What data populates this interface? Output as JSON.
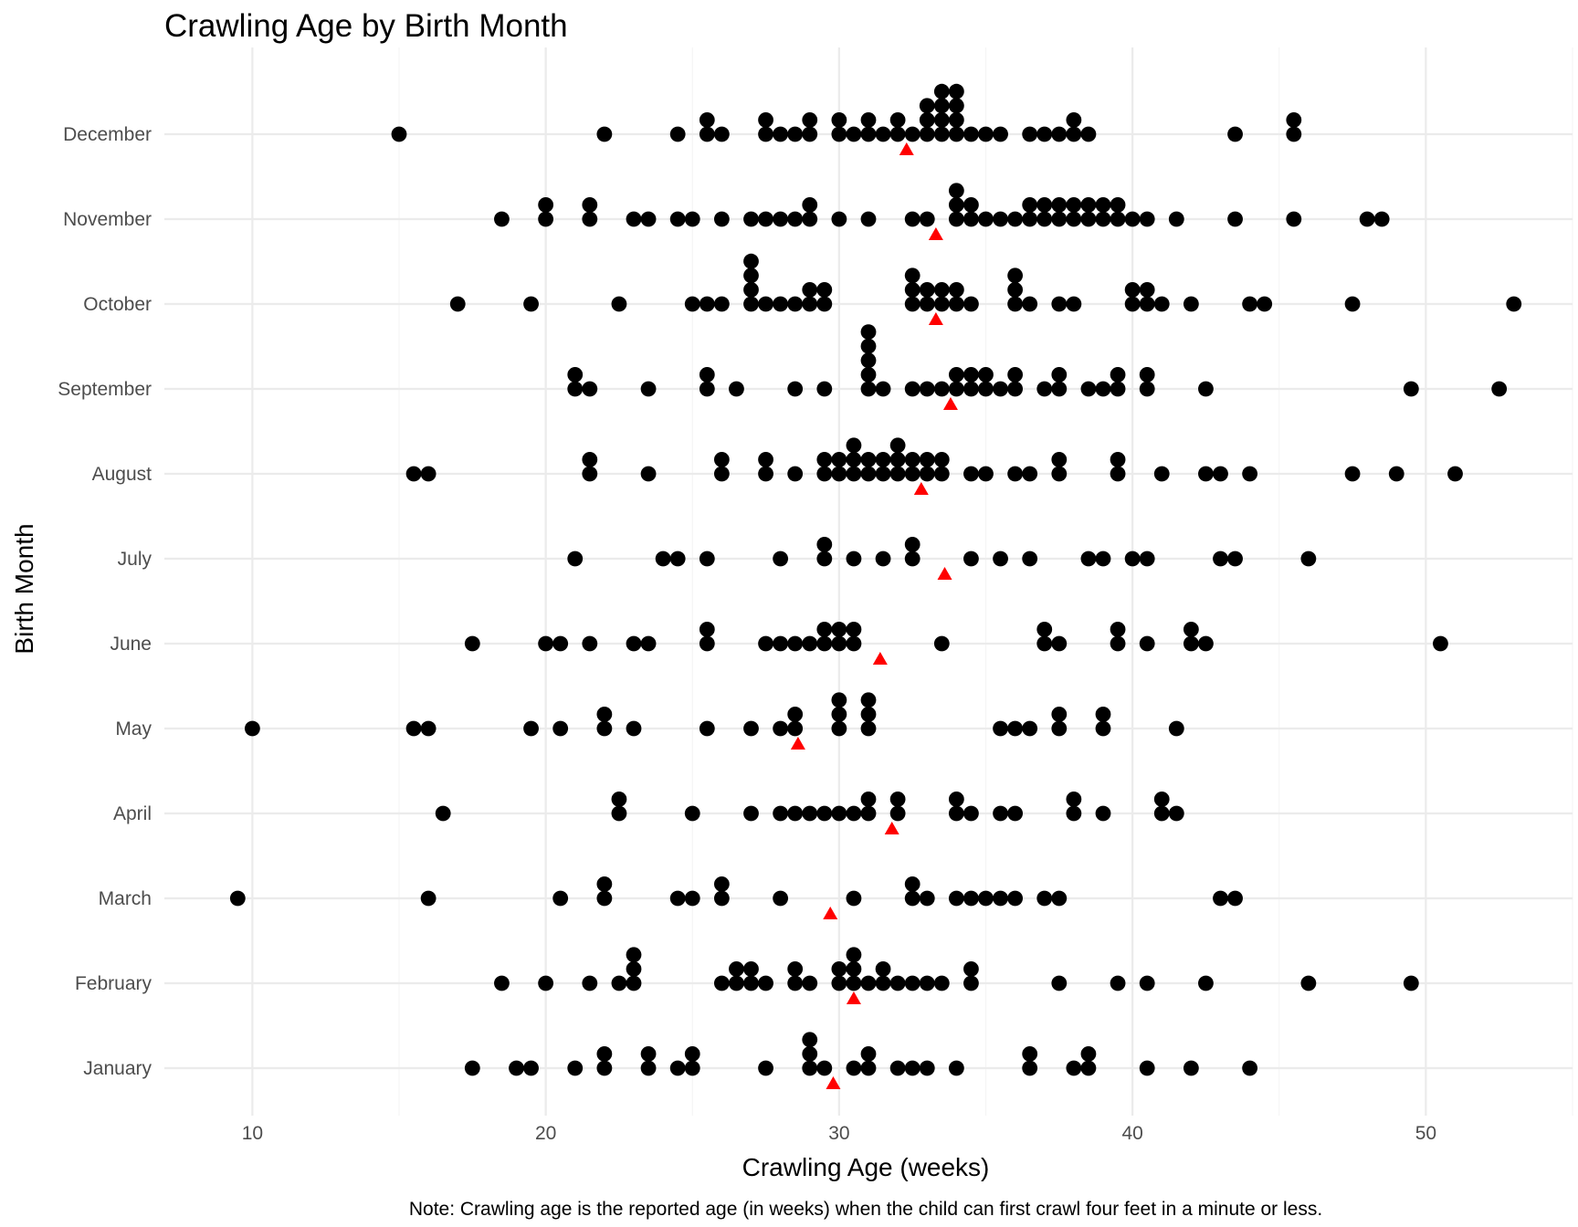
{
  "chart_data": {
    "type": "scatter",
    "title": "Crawling Age by Birth Month",
    "xlabel": "Crawling Age (weeks)",
    "ylabel": "Birth Month",
    "caption": "Note: Crawling age is the reported age (in weeks) when the child can first crawl four feet in a minute or less.",
    "xlim": [
      7,
      55
    ],
    "x_ticks": [
      10,
      20,
      30,
      40,
      50
    ],
    "grid": true,
    "categories": [
      "January",
      "February",
      "March",
      "April",
      "May",
      "June",
      "July",
      "August",
      "September",
      "October",
      "November",
      "December"
    ],
    "series": [
      {
        "marker": "dot",
        "color": "#000000",
        "values": {
          "January": [
            17.5,
            19,
            19.5,
            21,
            22,
            22,
            23.5,
            23.5,
            24.5,
            25,
            25,
            27.5,
            29,
            29,
            29,
            29.5,
            30.5,
            31,
            31,
            32,
            32.5,
            33,
            34,
            36.5,
            36.5,
            38,
            38.5,
            38.5,
            40.5,
            42,
            44
          ],
          "February": [
            18.5,
            20,
            21.5,
            22.5,
            23,
            23,
            23,
            26,
            26.5,
            26.5,
            27,
            27,
            27.5,
            28.5,
            28.5,
            29,
            30,
            30,
            30.5,
            30.5,
            30.5,
            31,
            31.5,
            31.5,
            32,
            32.5,
            33,
            33.5,
            34.5,
            34.5,
            37.5,
            39.5,
            40.5,
            42.5,
            46,
            49.5
          ],
          "March": [
            9.5,
            16,
            20.5,
            22,
            22,
            24.5,
            25,
            26,
            26,
            28,
            30.5,
            32.5,
            32.5,
            33,
            34,
            34.5,
            35,
            35.5,
            36,
            37,
            37.5,
            43,
            43.5
          ],
          "April": [
            16.5,
            22.5,
            22.5,
            25,
            27,
            28,
            28.5,
            29,
            29.5,
            30,
            30.5,
            31,
            31,
            32,
            32,
            34,
            34,
            34.5,
            35.5,
            36,
            38,
            38,
            39,
            41,
            41,
            41.5
          ],
          "May": [
            10,
            15.5,
            16,
            19.5,
            20.5,
            22,
            22,
            23,
            25.5,
            27,
            28,
            28.5,
            28.5,
            30,
            30,
            30,
            31,
            31,
            31,
            35.5,
            36,
            36.5,
            37.5,
            37.5,
            39,
            39,
            41.5
          ],
          "June": [
            17.5,
            20,
            20.5,
            21.5,
            23,
            23.5,
            25.5,
            25.5,
            27.5,
            28,
            28.5,
            29,
            29.5,
            29.5,
            30,
            30,
            30.5,
            30.5,
            33.5,
            37,
            37,
            37.5,
            39.5,
            39.5,
            40.5,
            42,
            42,
            42.5,
            50.5
          ],
          "July": [
            21,
            24,
            24.5,
            25.5,
            28,
            29.5,
            29.5,
            30.5,
            31.5,
            32.5,
            32.5,
            34.5,
            35.5,
            36.5,
            38.5,
            39,
            40,
            40.5,
            43,
            43.5,
            46
          ],
          "August": [
            15.5,
            16,
            21.5,
            21.5,
            23.5,
            26,
            26,
            27.5,
            27.5,
            28.5,
            29.5,
            29.5,
            30,
            30,
            30.5,
            30.5,
            30.5,
            31,
            31,
            31.5,
            31.5,
            32,
            32,
            32,
            32.5,
            32.5,
            33,
            33,
            33.5,
            33.5,
            34.5,
            35,
            36,
            36.5,
            37.5,
            37.5,
            39.5,
            39.5,
            41,
            42.5,
            43,
            44,
            47.5,
            49,
            51
          ],
          "September": [
            21,
            21,
            21.5,
            23.5,
            25.5,
            25.5,
            26.5,
            28.5,
            29.5,
            31,
            31,
            31,
            31,
            31,
            31.5,
            32.5,
            33,
            33.5,
            34,
            34,
            34.5,
            34.5,
            35,
            35,
            35.5,
            36,
            36,
            37,
            37.5,
            37.5,
            38.5,
            39,
            39.5,
            39.5,
            40.5,
            40.5,
            42.5,
            49.5,
            52.5
          ],
          "October": [
            17,
            19.5,
            22.5,
            25,
            25.5,
            26,
            27,
            27,
            27,
            27,
            27.5,
            28,
            28.5,
            29,
            29,
            29.5,
            29.5,
            32.5,
            32.5,
            32.5,
            33,
            33,
            33.5,
            33.5,
            34,
            34,
            34.5,
            36,
            36,
            36,
            36.5,
            37.5,
            38,
            40,
            40,
            40.5,
            40.5,
            41,
            42,
            44,
            44.5,
            47.5,
            53
          ],
          "November": [
            18.5,
            20,
            20,
            21.5,
            21.5,
            23,
            23.5,
            24.5,
            25,
            26,
            27,
            27.5,
            28,
            28.5,
            29,
            29,
            30,
            31,
            32.5,
            33,
            34,
            34,
            34,
            34.5,
            34.5,
            35,
            35.5,
            36,
            36.5,
            36.5,
            37,
            37,
            37.5,
            37.5,
            38,
            38,
            38.5,
            38.5,
            39,
            39,
            39.5,
            39.5,
            40,
            40.5,
            41.5,
            43.5,
            45.5,
            48,
            48.5
          ],
          "December": [
            15,
            22,
            24.5,
            25.5,
            25.5,
            26,
            27.5,
            27.5,
            28,
            28.5,
            29,
            29,
            30,
            30,
            30.5,
            31,
            31,
            31.5,
            32,
            32,
            32.5,
            33,
            33,
            33,
            33.5,
            33.5,
            33.5,
            33.5,
            34,
            34,
            34,
            34,
            34.5,
            35,
            35.5,
            36.5,
            37,
            37.5,
            38,
            38,
            38.5,
            43.5,
            45.5,
            45.5
          ]
        }
      },
      {
        "marker": "triangle",
        "color": "#ff0000",
        "values": {
          "January": 29.8,
          "February": 30.5,
          "March": 29.7,
          "April": 31.8,
          "May": 28.6,
          "June": 31.4,
          "July": 33.6,
          "August": 32.8,
          "September": 33.8,
          "October": 33.3,
          "November": 33.3,
          "December": 32.3
        }
      }
    ]
  }
}
